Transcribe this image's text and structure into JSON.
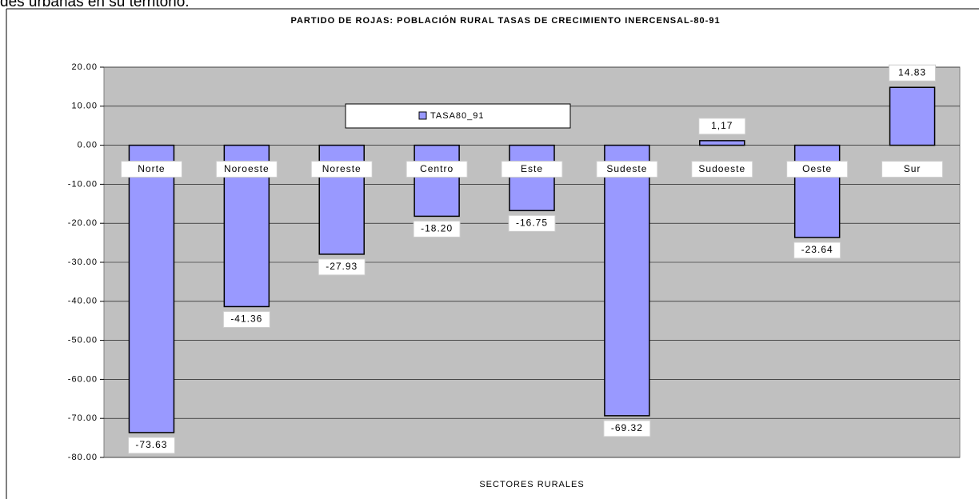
{
  "header_text": "des urbanas en su territorio.",
  "chart_data": {
    "type": "bar",
    "title": "PARTIDO DE ROJAS: POBLACIÓN RURAL TASAS DE CRECIMIENTO INERCENSAL-80-91",
    "x_label": "SECTORES RURALES",
    "categories": [
      "Norte",
      "Noroeste",
      "Noreste",
      "Centro",
      "Este",
      "Sudeste",
      "Sudoeste",
      "Oeste",
      "Sur"
    ],
    "series": [
      {
        "name": "TASA80_91",
        "color": "#9999ff",
        "values": [
          -73.63,
          -41.36,
          -27.93,
          -18.2,
          -16.75,
          -69.32,
          1.17,
          -23.64,
          14.83
        ],
        "value_labels": [
          "-73.63",
          "-41.36",
          "-27.93",
          "-18.20",
          "-16.75",
          "-69.32",
          "1,17",
          "-23.64",
          "14.83"
        ]
      }
    ],
    "ylim": [
      -80,
      20
    ],
    "yticks": [
      {
        "value": 20,
        "label": "20.00"
      },
      {
        "value": 10,
        "label": "10.00"
      },
      {
        "value": 0,
        "label": "0.00"
      },
      {
        "value": -10,
        "label": "-10.00"
      },
      {
        "value": -20,
        "label": "-20.00"
      },
      {
        "value": -30,
        "label": "-30.00"
      },
      {
        "value": -40,
        "label": "-40.00"
      },
      {
        "value": -50,
        "label": "-50.00"
      },
      {
        "value": -60,
        "label": "-60.00"
      },
      {
        "value": -70,
        "label": "-70.00"
      },
      {
        "value": -80,
        "label": "-80.00"
      }
    ],
    "grid": true,
    "legend": "top",
    "plot_background": "#c0c0c0"
  }
}
